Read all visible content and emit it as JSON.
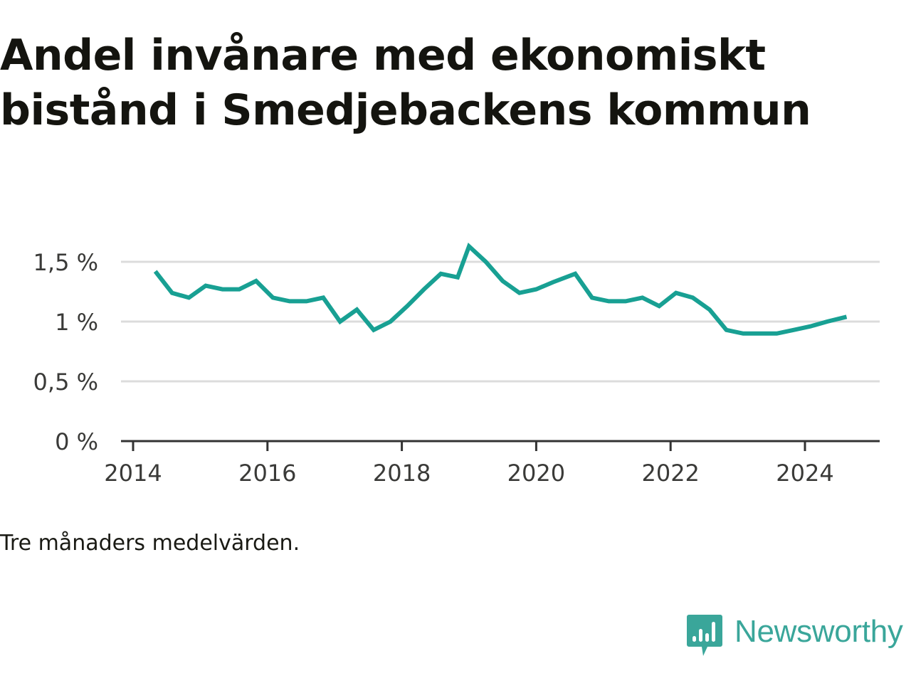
{
  "title": "Andel invånare med ekonomiskt bistånd i Smedjebackens kommun",
  "note": "Tre månaders medelvärden.",
  "brand": {
    "name": "Newsworthy",
    "icon": "newsworthy-logo-icon",
    "color": "#3aa69a"
  },
  "chart_data": {
    "type": "line",
    "title": "Andel invånare med ekonomiskt bistånd i Smedjebackens kommun",
    "xlabel": "",
    "ylabel": "",
    "ylim": [
      0,
      1.7
    ],
    "yticks": [
      0,
      0.5,
      1,
      1.5
    ],
    "ytick_labels": [
      "0 %",
      "0,5 %",
      "1 %",
      "1,5 %"
    ],
    "xlim": [
      2014.0,
      2025.1
    ],
    "xticks": [
      2014,
      2016,
      2018,
      2020,
      2022,
      2024
    ],
    "xtick_labels": [
      "2014",
      "2016",
      "2018",
      "2020",
      "2022",
      "2024"
    ],
    "grid": true,
    "line_color": "#18a093",
    "series": [
      {
        "x": [
          2014.33,
          2014.58,
          2014.83,
          2015.08,
          2015.33,
          2015.58,
          2015.83,
          2016.08,
          2016.33,
          2016.58,
          2016.83,
          2017.08,
          2017.33,
          2017.58,
          2017.83,
          2018.08,
          2018.33,
          2018.58,
          2018.83,
          2019.0,
          2019.25,
          2019.5,
          2019.75,
          2020.0,
          2020.25,
          2020.58,
          2020.83,
          2021.08,
          2021.33,
          2021.58,
          2021.83,
          2022.08,
          2022.33,
          2022.58,
          2022.83,
          2023.08,
          2023.33,
          2023.58,
          2023.83,
          2024.08,
          2024.33,
          2024.62
        ],
        "values": [
          1.42,
          1.24,
          1.2,
          1.3,
          1.27,
          1.27,
          1.34,
          1.2,
          1.17,
          1.17,
          1.2,
          1.0,
          1.1,
          0.93,
          1.0,
          1.13,
          1.27,
          1.4,
          1.37,
          1.63,
          1.5,
          1.34,
          1.24,
          1.27,
          1.33,
          1.4,
          1.2,
          1.17,
          1.17,
          1.2,
          1.13,
          1.24,
          1.2,
          1.1,
          0.93,
          0.9,
          0.9,
          0.9,
          0.93,
          0.96,
          1.0,
          1.04
        ]
      }
    ]
  }
}
